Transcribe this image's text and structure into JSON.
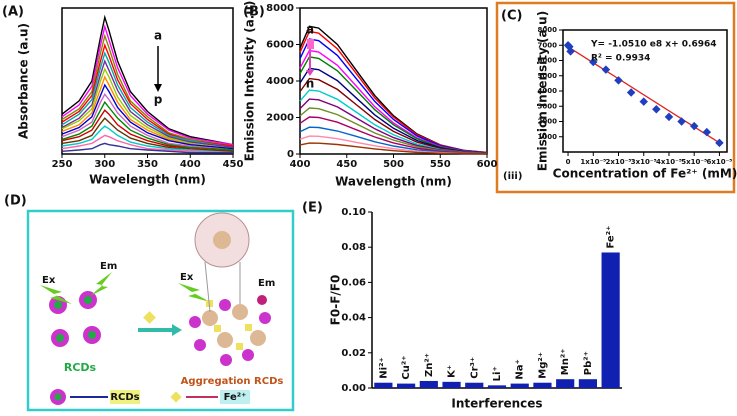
{
  "chart_data": [
    {
      "type": "line",
      "panel": "(A)",
      "x_label": "Wavelength (nm)",
      "y_label": "Absorbance (a.u)",
      "x": [
        250,
        270,
        285,
        295,
        300,
        305,
        315,
        330,
        350,
        375,
        400,
        450
      ],
      "xlim": [
        250,
        450
      ],
      "xticks": [
        250,
        300,
        350,
        400,
        450
      ],
      "ylim": [
        0,
        1.1
      ],
      "annotations": [
        "a",
        "p"
      ],
      "series": [
        {
          "color": "#000000",
          "values": [
            0.3,
            0.4,
            0.55,
            0.88,
            1.03,
            0.93,
            0.7,
            0.47,
            0.32,
            0.19,
            0.13,
            0.07
          ]
        },
        {
          "color": "#ff00ff",
          "values": [
            0.28,
            0.37,
            0.51,
            0.82,
            0.96,
            0.86,
            0.65,
            0.44,
            0.3,
            0.18,
            0.12,
            0.07
          ]
        },
        {
          "color": "#888800",
          "values": [
            0.26,
            0.34,
            0.47,
            0.76,
            0.89,
            0.8,
            0.6,
            0.4,
            0.28,
            0.16,
            0.11,
            0.06
          ]
        },
        {
          "color": "#ff0000",
          "values": [
            0.24,
            0.32,
            0.44,
            0.7,
            0.82,
            0.74,
            0.56,
            0.38,
            0.26,
            0.15,
            0.1,
            0.06
          ]
        },
        {
          "color": "#00aaaa",
          "values": [
            0.22,
            0.3,
            0.41,
            0.65,
            0.76,
            0.69,
            0.52,
            0.35,
            0.24,
            0.14,
            0.1,
            0.05
          ]
        },
        {
          "color": "#7030a0",
          "values": [
            0.2,
            0.27,
            0.37,
            0.6,
            0.7,
            0.63,
            0.48,
            0.32,
            0.22,
            0.13,
            0.09,
            0.05
          ]
        },
        {
          "color": "#99cc00",
          "values": [
            0.19,
            0.25,
            0.34,
            0.55,
            0.64,
            0.58,
            0.43,
            0.29,
            0.2,
            0.12,
            0.08,
            0.04
          ]
        },
        {
          "color": "#ff8800",
          "values": [
            0.17,
            0.22,
            0.31,
            0.49,
            0.58,
            0.52,
            0.39,
            0.26,
            0.18,
            0.11,
            0.07,
            0.04
          ]
        },
        {
          "color": "#0000cc",
          "values": [
            0.15,
            0.2,
            0.28,
            0.44,
            0.52,
            0.47,
            0.35,
            0.24,
            0.16,
            0.1,
            0.07,
            0.04
          ]
        },
        {
          "color": "#cc66cc",
          "values": [
            0.13,
            0.18,
            0.24,
            0.39,
            0.45,
            0.41,
            0.31,
            0.21,
            0.14,
            0.08,
            0.06,
            0.03
          ]
        },
        {
          "color": "#008800",
          "values": [
            0.11,
            0.15,
            0.21,
            0.33,
            0.39,
            0.35,
            0.27,
            0.18,
            0.12,
            0.07,
            0.05,
            0.03
          ]
        },
        {
          "color": "#cc0000",
          "values": [
            0.1,
            0.13,
            0.18,
            0.28,
            0.33,
            0.3,
            0.22,
            0.15,
            0.1,
            0.06,
            0.04,
            0.02
          ]
        },
        {
          "color": "#663300",
          "values": [
            0.08,
            0.1,
            0.14,
            0.23,
            0.27,
            0.24,
            0.18,
            0.12,
            0.08,
            0.05,
            0.03,
            0.02
          ]
        },
        {
          "color": "#00cccc",
          "values": [
            0.06,
            0.08,
            0.11,
            0.18,
            0.21,
            0.19,
            0.14,
            0.09,
            0.06,
            0.04,
            0.03,
            0.01
          ]
        },
        {
          "color": "#ff66aa",
          "values": [
            0.04,
            0.06,
            0.08,
            0.12,
            0.14,
            0.13,
            0.1,
            0.07,
            0.04,
            0.03,
            0.02,
            0.01
          ]
        },
        {
          "color": "#333399",
          "values": [
            0.02,
            0.03,
            0.04,
            0.07,
            0.08,
            0.07,
            0.06,
            0.04,
            0.03,
            0.02,
            0.01,
            0.01
          ]
        }
      ]
    },
    {
      "type": "line",
      "panel": "(B)",
      "x_label": "Wavelength (nm)",
      "y_label": "Emission Intensity (a.u)",
      "x": [
        400,
        410,
        420,
        440,
        460,
        480,
        500,
        525,
        550,
        575,
        600
      ],
      "xlim": [
        400,
        600
      ],
      "xticks": [
        400,
        450,
        500,
        550,
        600
      ],
      "ylim": [
        0,
        8000
      ],
      "yticks": [
        0,
        2000,
        4000,
        6000,
        8000
      ],
      "annotations": [
        "a",
        "n"
      ],
      "series": [
        {
          "color": "#000000",
          "values": [
            5800,
            7000,
            6900,
            6000,
            4600,
            3200,
            2100,
            1100,
            500,
            200,
            80
          ]
        },
        {
          "color": "#ff0000",
          "values": [
            5570,
            6720,
            6620,
            5760,
            4420,
            3070,
            2020,
            1060,
            480,
            190,
            80
          ]
        },
        {
          "color": "#0000ff",
          "values": [
            5220,
            6300,
            6210,
            5400,
            4140,
            2880,
            1890,
            990,
            450,
            180,
            70
          ]
        },
        {
          "color": "#ff00ff",
          "values": [
            4700,
            5670,
            5590,
            4860,
            3730,
            2590,
            1700,
            890,
            410,
            160,
            60
          ]
        },
        {
          "color": "#008000",
          "values": [
            4410,
            5320,
            5240,
            4560,
            3500,
            2430,
            1600,
            840,
            380,
            150,
            60
          ]
        },
        {
          "color": "#000080",
          "values": [
            3890,
            4690,
            4620,
            4020,
            3080,
            2140,
            1410,
            740,
            340,
            130,
            50
          ]
        },
        {
          "color": "#800000",
          "values": [
            3420,
            4130,
            4070,
            3540,
            2710,
            1890,
            1240,
            650,
            300,
            120,
            50
          ]
        },
        {
          "color": "#00cccc",
          "values": [
            2900,
            3500,
            3450,
            3000,
            2300,
            1600,
            1050,
            550,
            250,
            100,
            40
          ]
        },
        {
          "color": "#800080",
          "values": [
            2490,
            3010,
            2970,
            2580,
            1980,
            1380,
            900,
            470,
            220,
            90,
            30
          ]
        },
        {
          "color": "#6b8e23",
          "values": [
            2090,
            2520,
            2480,
            2160,
            1660,
            1150,
            760,
            400,
            180,
            70,
            30
          ]
        },
        {
          "color": "#aa0066",
          "values": [
            1680,
            2030,
            2000,
            1740,
            1330,
            930,
            610,
            320,
            150,
            60,
            20
          ]
        },
        {
          "color": "#0066cc",
          "values": [
            1220,
            1470,
            1450,
            1260,
            970,
            670,
            440,
            230,
            110,
            40,
            20
          ]
        },
        {
          "color": "#ff88aa",
          "values": [
            810,
            980,
            970,
            840,
            640,
            450,
            290,
            150,
            70,
            30,
            10
          ]
        },
        {
          "color": "#993300",
          "values": [
            500,
            600,
            590,
            520,
            400,
            280,
            180,
            90,
            40,
            20,
            10
          ]
        }
      ]
    },
    {
      "type": "scatter",
      "panel": "(C)",
      "subpanel": "(iii)",
      "x_label": "Concentration of Fe²⁺ (mM)",
      "y_label": "Emission intensity (a.u)",
      "annotations": [
        "Y= -1.0510 e8 x+ 0.6964",
        "R² = 0.9934"
      ],
      "x": [
        0,
        5e-07,
        1e-06,
        1e-05,
        1.5e-05,
        2e-05,
        2.5e-05,
        3e-05,
        3.5e-05,
        4e-05,
        4.5e-05,
        5e-05,
        5.5e-05,
        6e-05
      ],
      "y": [
        7000,
        6900,
        6600,
        5900,
        5400,
        4700,
        3900,
        3300,
        2800,
        2300,
        2000,
        1700,
        1300,
        600
      ],
      "color": "#1f3fbf",
      "fit": {
        "x": [
          0,
          6e-05
        ],
        "y": [
          6900,
          600
        ],
        "color": "#e02020"
      },
      "xlim": [
        -2e-06,
        6.3e-05
      ],
      "xticks": [
        0,
        {
          "value": 1e-05,
          "label": "1x10⁻⁵"
        },
        {
          "value": 2e-05,
          "label": "2x10⁻⁵"
        },
        {
          "value": 3e-05,
          "label": "3x10⁻⁵"
        },
        {
          "value": 4e-05,
          "label": "4x10⁻⁵"
        },
        {
          "value": 5e-05,
          "label": "5x10⁻⁵"
        },
        {
          "value": 6e-05,
          "label": "6x10⁻⁵"
        }
      ],
      "ylim": [
        0,
        8000
      ],
      "yticks": [
        1000,
        2000,
        3000,
        4000,
        5000,
        6000,
        7000,
        8000
      ]
    },
    {
      "type": "bar",
      "panel": "(E)",
      "x_label": "Interferences",
      "y_label": "F0-F/F0",
      "color": "#1020b0",
      "categories": [
        "Ni²⁺",
        "Cu²⁺",
        "Zn²⁺",
        "K⁺",
        "Cr³⁺",
        "Li⁺",
        "Na⁺",
        "Mg²⁺",
        "Mn²⁺",
        "Pb²⁺",
        "Fe²⁺"
      ],
      "values": [
        0.003,
        0.0025,
        0.004,
        0.0035,
        0.003,
        0.0015,
        0.0025,
        0.003,
        0.005,
        0.005,
        0.077
      ],
      "ylim": [
        0,
        0.1
      ],
      "yticks": [
        {
          "value": 0,
          "label": "0.00"
        },
        {
          "value": 0.02,
          "label": "0.02"
        },
        {
          "value": 0.04,
          "label": "0.04"
        },
        {
          "value": 0.06,
          "label": "0.06"
        },
        {
          "value": 0.08,
          "label": "0.08"
        },
        {
          "value": 0.1,
          "label": "0.10"
        }
      ]
    }
  ],
  "diagram": {
    "panel": "(D)",
    "excitation": [
      "Ex",
      "Ex"
    ],
    "emission": [
      "Em",
      "Em"
    ],
    "rcds_label": "RCDs",
    "aggregation_label": "Aggregation RCDs",
    "legend": [
      "RCDs",
      "Fe²⁺"
    ]
  }
}
